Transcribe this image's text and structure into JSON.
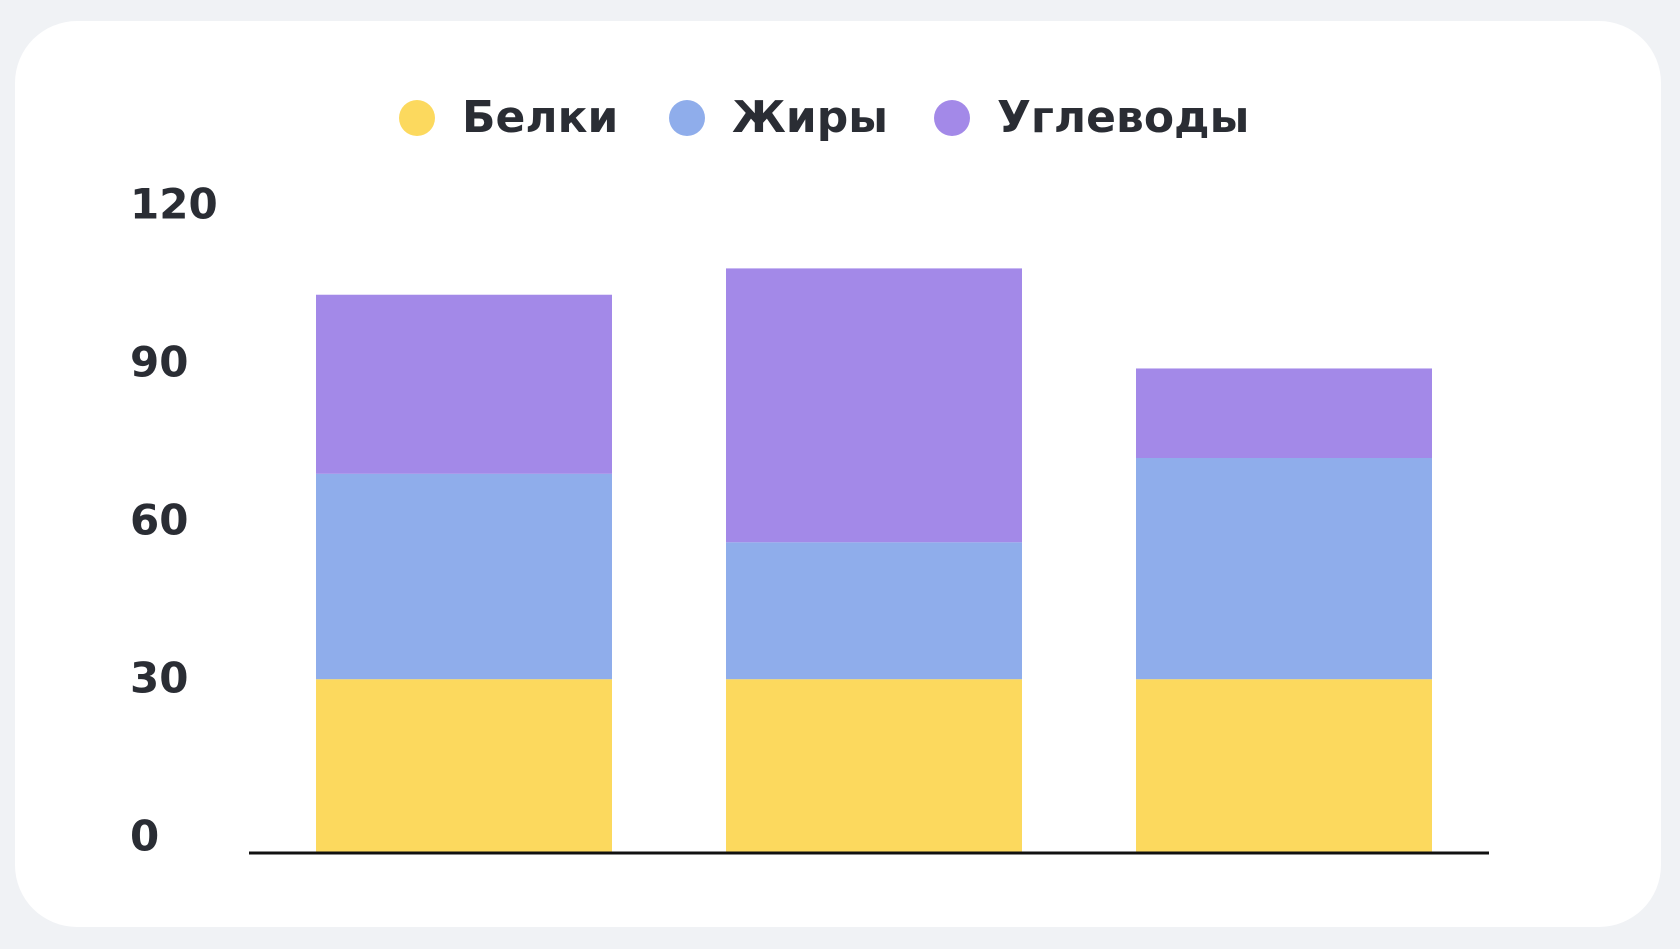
{
  "chart_data": {
    "type": "bar",
    "stacked": true,
    "categories": [
      null,
      null,
      null
    ],
    "series": [
      {
        "name": "Белки",
        "color": "#fcd95e",
        "values": [
          33,
          33,
          33
        ]
      },
      {
        "name": "Жиры",
        "color": "#8fadeb",
        "values": [
          39,
          26,
          42
        ]
      },
      {
        "name": "Углеводы",
        "color": "#a389e8",
        "values": [
          34,
          52,
          17
        ]
      }
    ],
    "ylim": [
      0,
      120
    ],
    "yticks": [
      0,
      30,
      60,
      90,
      120
    ],
    "grid": false,
    "legend": "top"
  }
}
